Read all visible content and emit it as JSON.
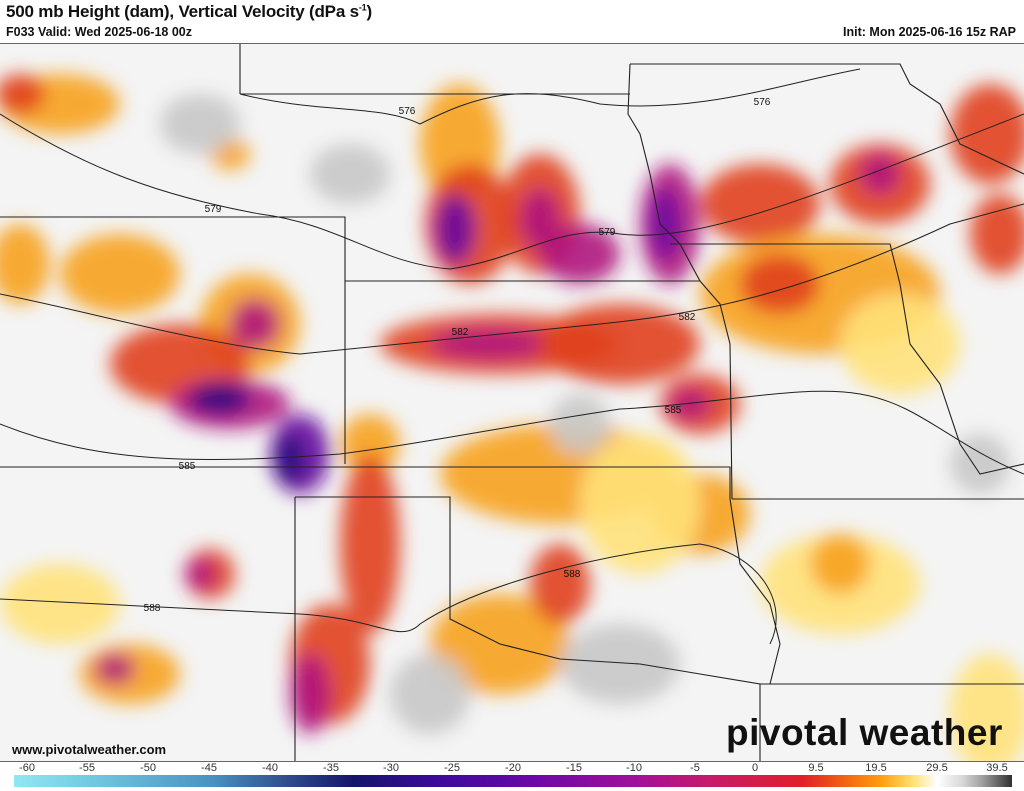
{
  "header": {
    "title": "500 mb Height (dam), Vertical Velocity (dPa s",
    "title_sup": "-1",
    "title_end": ")",
    "valid": "F033 Valid: Wed 2025-06-18 00z",
    "init": "Init: Mon 2025-06-16 15z RAP"
  },
  "map": {
    "contour_labels": [
      "576",
      "576",
      "579",
      "579",
      "582",
      "582",
      "585",
      "585",
      "588",
      "588"
    ],
    "contour_color": "#222222"
  },
  "footer": {
    "url": "www.pivotalweather.com",
    "brand": "pivotal weather"
  },
  "colorbar": {
    "ticks": [
      "-60",
      "-55",
      "-50",
      "-45",
      "-40",
      "-35",
      "-30",
      "-25",
      "-20",
      "-15",
      "-10",
      "-5",
      "0",
      "9.5",
      "19.5",
      "29.5",
      "39.5"
    ]
  }
}
